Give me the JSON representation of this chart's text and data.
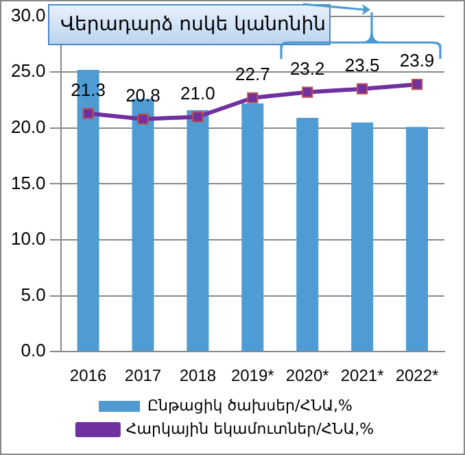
{
  "chart_data": {
    "type": "bar",
    "title": "Վերադարձ ոսկե կանոնին",
    "categories": [
      "2016",
      "2017",
      "2018",
      "2019*",
      "2020*",
      "2021*",
      "2022*"
    ],
    "series": [
      {
        "name": "Ընթացիկ ծախսեր/ՀՆԱ,%",
        "color": "#4f9bd3",
        "values": [
          25.2,
          22.6,
          21.6,
          22.2,
          20.9,
          20.5,
          20.1
        ]
      },
      {
        "name": "Հարկային եկամուտներ/ՀՆԱ,%",
        "type": "line",
        "color": "#7030a0",
        "values": [
          21.3,
          20.8,
          21.0,
          22.7,
          23.2,
          23.5,
          23.9
        ],
        "value_labels": [
          "21.3",
          "20.8",
          "21.0",
          "22.7",
          "23.2",
          "23.5",
          "23.9"
        ]
      }
    ],
    "ylim": [
      0,
      30
    ],
    "yticks": [
      {
        "value": 0,
        "label": "0.0"
      },
      {
        "value": 5,
        "label": "5.0"
      },
      {
        "value": 10,
        "label": "10.0"
      },
      {
        "value": 15,
        "label": "15.0"
      },
      {
        "value": 20,
        "label": "20.0"
      },
      {
        "value": 25,
        "label": "25.0"
      },
      {
        "value": 30,
        "label": "30.0"
      }
    ],
    "grid": "y",
    "legend": "bottom",
    "marker": "square",
    "line_style": "solid"
  }
}
